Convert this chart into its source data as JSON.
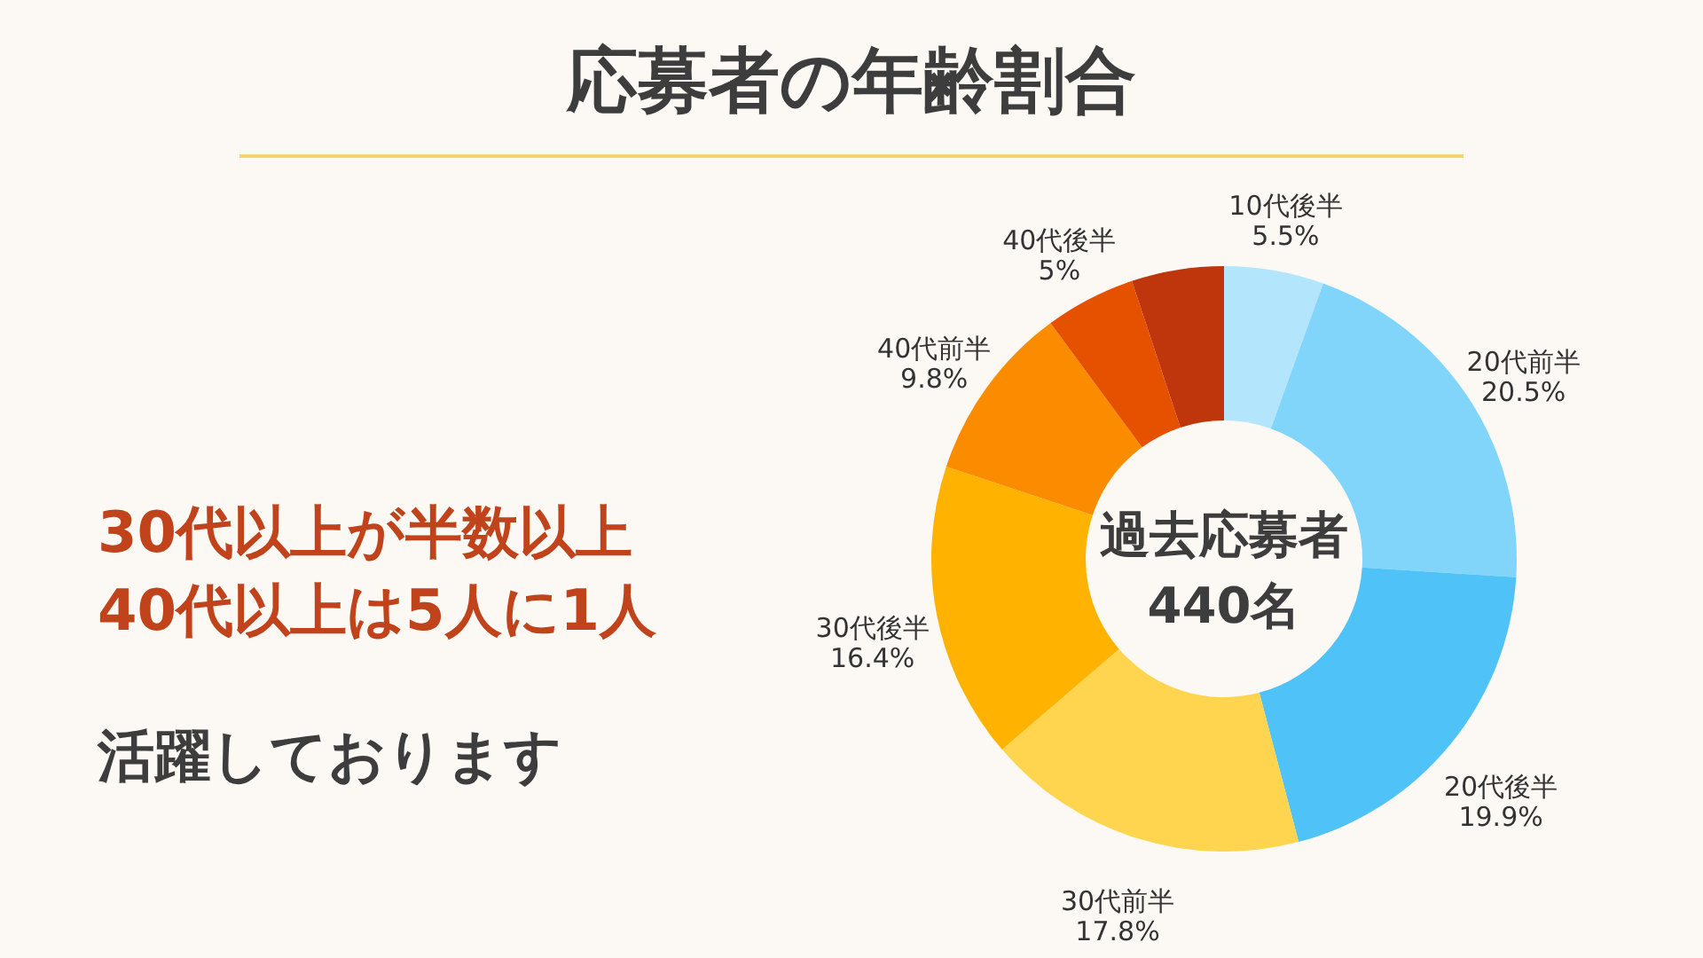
{
  "chart_data": {
    "type": "donut",
    "title": "応募者の年齢割合",
    "categories": [
      "10代後半",
      "20代前半",
      "20代後半",
      "30代前半",
      "30代後半",
      "40代前半",
      "40代後半",
      null
    ],
    "values": [
      5.5,
      20.5,
      19.9,
      17.8,
      16.4,
      9.8,
      5,
      5.1
    ],
    "value_labels": [
      "5.5%",
      "20.5%",
      "19.9%",
      "17.8%",
      "16.4%",
      "9.8%",
      "5%",
      null
    ],
    "colors": [
      "#b3e5fc",
      "#81d4fa",
      "#4fc3f7",
      "#ffd54f",
      "#ffb300",
      "#fb8c00",
      "#e65100",
      "#bf360c"
    ],
    "annotations": [
      "30代以上が半数以上\n40代以上は5人に1人",
      "活躍しております",
      "過去応募者\n440名"
    ]
  }
}
